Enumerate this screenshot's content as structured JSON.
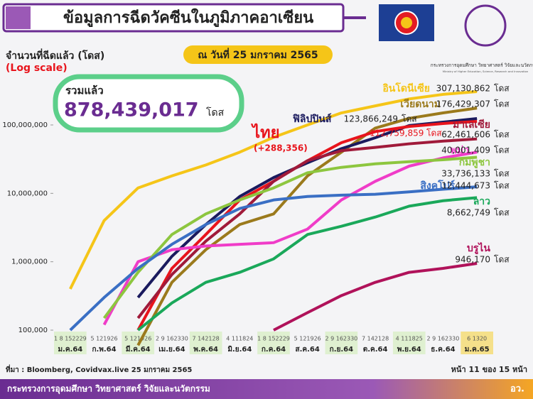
{
  "header": {
    "title": "ข้อมูลการฉีดวัคซีนในภูมิภาคอาเซียน",
    "ministry": "กระทรวงการอุดมศึกษา วิทยาศาสตร์ วิจัยและนวัตกรรม",
    "ministry_en": "Ministry of Higher Education, Science, Research and Innovation"
  },
  "footer": {
    "source": "ที่มา : Bloomberg, Covidvax.live 25 มกราคม 2565",
    "page": "หน้า 11 ของ 15 หน้า",
    "ministry": "กระทรวงการอุดมศึกษา วิทยาศาสตร์ วิจัยและนวัตกรรม",
    "short": "อว."
  },
  "chart_data": {
    "type": "line",
    "y_axis_label": "จำนวนที่ฉีดแล้ว (โดส)",
    "scale_note": "(Log scale)",
    "date": "ณ วันที่ 25 มกราคม 2565",
    "total_label": "รวมแล้ว",
    "total": {
      "value": 878439017,
      "label": "878,439,017"
    },
    "unit": "โดส",
    "log_scale": true,
    "ylim": [
      100000,
      400000000
    ],
    "yticks": [
      {
        "value": 100000,
        "label": "100,000"
      },
      {
        "value": 1000000,
        "label": "1,000,000"
      },
      {
        "value": 10000000,
        "label": "10,000,000"
      },
      {
        "value": 100000000,
        "label": "100,000,000"
      }
    ],
    "categories": [
      "ม.ค.64",
      "ก.พ.64",
      "มี.ค.64",
      "เม.ย.64",
      "พ.ค.64",
      "มิ.ย.64",
      "ก.ค.64",
      "ส.ค.64",
      "ก.ย.64",
      "ต.ค.64",
      "พ.ย.64",
      "ธ.ค.64",
      "ม.ค.65"
    ],
    "x_day_labels": [
      "1 8 152229",
      "5 121926",
      "5 121926",
      "2 9 162330",
      "7 142128",
      "4 111824",
      "1 8 152229",
      "5 121926",
      "2 9 162330",
      "7 142128",
      "4 111825",
      "2 9 162330",
      "6 1320"
    ],
    "series": [
      {
        "name": "อินโดนีเซีย",
        "color": "#f5c518",
        "end_label": "307,130,862",
        "values": [
          400000,
          4000000,
          12000000,
          18000000,
          26000000,
          40000000,
          66000000,
          100000000,
          150000000,
          190000000,
          240000000,
          280000000,
          307130862
        ]
      },
      {
        "name": "เวียดนาม",
        "color": "#9b7a1c",
        "end_label": "176,429,307",
        "values": [
          null,
          null,
          60000,
          500000,
          1500000,
          3500000,
          5000000,
          18000000,
          40000000,
          90000000,
          125000000,
          150000000,
          176429307
        ]
      },
      {
        "name": "ฟิลิปปินส์",
        "color": "#1a1a5e",
        "end_label": "123,866,249",
        "values": [
          null,
          null,
          300000,
          1200000,
          3500000,
          9000000,
          17000000,
          28000000,
          45000000,
          65000000,
          98000000,
          110000000,
          123866249
        ]
      },
      {
        "name": "ไทย",
        "color": "#e8141c",
        "end_label": "112,759,859",
        "change": "(+288,356)",
        "values": [
          null,
          null,
          100000,
          800000,
          2500000,
          8000000,
          15000000,
          30000000,
          55000000,
          80000000,
          95000000,
          105000000,
          112759859
        ]
      },
      {
        "name": "มาเลเซีย",
        "color": "#a01a3a",
        "end_label": "62,461,606",
        "values": [
          null,
          null,
          150000,
          650000,
          2000000,
          5000000,
          15000000,
          30000000,
          42000000,
          47000000,
          53000000,
          58000000,
          62461606
        ]
      },
      {
        "name": "พม่า",
        "color": "#f03cc8",
        "end_label": "40,001,409",
        "values": [
          null,
          120000,
          1000000,
          1500000,
          1700000,
          1800000,
          1900000,
          3000000,
          8000000,
          15000000,
          25000000,
          33000000,
          40001409
        ]
      },
      {
        "name": "กัมพูชา",
        "color": "#8dc63f",
        "end_label": "33,736,133",
        "values": [
          null,
          150000,
          700000,
          2500000,
          5000000,
          8000000,
          12000000,
          20000000,
          24000000,
          27000000,
          29000000,
          31000000,
          33736133
        ]
      },
      {
        "name": "สิงคโปร์",
        "color": "#3a6fc4",
        "end_label": "12,444,673",
        "values": [
          100000,
          300000,
          800000,
          1800000,
          3500000,
          6000000,
          8000000,
          9000000,
          9400000,
          9700000,
          10500000,
          11500000,
          12444673
        ]
      },
      {
        "name": "ลาว",
        "color": "#1aa85a",
        "end_label": "8,662,749",
        "values": [
          null,
          null,
          100000,
          250000,
          500000,
          700000,
          1100000,
          2500000,
          3300000,
          4500000,
          6500000,
          7800000,
          8662749
        ]
      },
      {
        "name": "บรูไน",
        "color": "#b0125a",
        "end_label": "946,170",
        "values": [
          null,
          null,
          null,
          null,
          null,
          null,
          100000,
          180000,
          320000,
          500000,
          700000,
          800000,
          946170
        ]
      }
    ]
  }
}
